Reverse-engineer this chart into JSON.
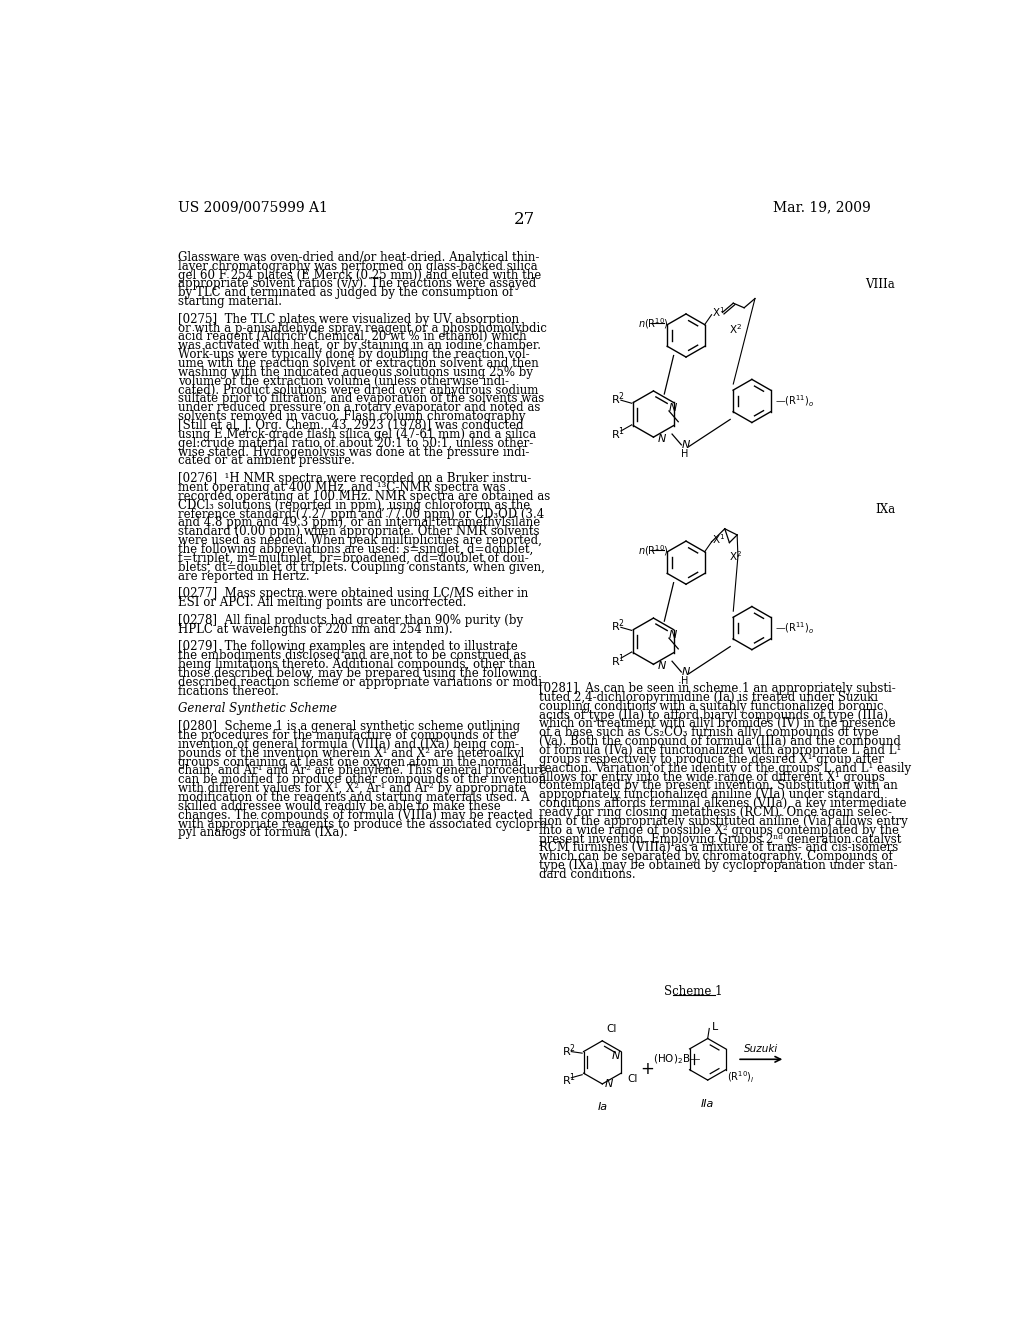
{
  "page_number": "27",
  "header_left": "US 2009/0075999 A1",
  "header_right": "Mar. 19, 2009",
  "background_color": "#ffffff",
  "text_color": "#000000",
  "body_text_left": [
    "Glassware was oven-dried and/or heat-dried. Analytical thin-",
    "layer chromatography was performed on glass-backed silica",
    "gel 60 F 254 plates (E Merck (0.25 mm)) and eluted with the",
    "appropriate solvent ratios (v/v). The reactions were assayed",
    "by TLC and terminated as judged by the consumption of",
    "starting material.",
    "",
    "[0275]  The TLC plates were visualized by UV absorption",
    "or with a p-anisaldehyde spray reagent or a phosphomolybdic",
    "acid reagent (Aldrich Chemical, 20 wt % in ethanol) which",
    "was activated with heat, or by staining in an iodine chamber.",
    "Work-ups were typically done by doubling the reaction vol-",
    "ume with the reaction solvent or extraction solvent and then",
    "washing with the indicated aqueous solutions using 25% by",
    "volume of the extraction volume (unless otherwise indi-",
    "cated). Product solutions were dried over anhydrous sodium",
    "sulfate prior to filtration, and evaporation of the solvents was",
    "under reduced pressure on a rotary evaporator and noted as",
    "solvents removed in vacuo. Flash column chromatography",
    "[Still et al, J. Org. Chem., 43, 2923 (1978)] was conducted",
    "using E Merck-grade flash silica gel (47-61 mm) and a silica",
    "gel:crude material ratio of about 20:1 to 50:1, unless other-",
    "wise stated. Hydrogenolysis was done at the pressure indi-",
    "cated or at ambient pressure.",
    "",
    "[0276]  ¹H NMR spectra were recorded on a Bruker instru-",
    "ment operating at 400 MHz, and ¹³C-NMR spectra was",
    "recorded operating at 100 MHz. NMR spectra are obtained as",
    "CDCl₃ solutions (reported in ppm), using chloroform as the",
    "reference standard (7.27 ppm and 77.00 ppm) or CD₃OD (3.4",
    "and 4.8 ppm and 49.3 ppm), or an internal tetramethylsilane",
    "standard (0.00 ppm) when appropriate. Other NMR solvents",
    "were used as needed. When peak multiplicities are reported,",
    "the following abbreviations are used: s=singlet, d=doublet,",
    "t=triplet, m=multiplet, br=broadened, dd=doublet of dou-",
    "blets, dt=doublet of triplets. Coupling constants, when given,",
    "are reported in Hertz.",
    "",
    "[0277]  Mass spectra were obtained using LC/MS either in",
    "ESI or APCI. All melting points are uncorrected.",
    "",
    "[0278]  All final products had greater than 90% purity (by",
    "HPLC at wavelengths of 220 nm and 254 nm).",
    "",
    "[0279]  The following examples are intended to illustrate",
    "the embodiments disclosed and are not to be construed as",
    "being limitations thereto. Additional compounds, other than",
    "those described below, may be prepared using the following",
    "described reaction scheme or appropriate variations or modi-",
    "fications thereof.",
    "",
    "General Synthetic Scheme",
    "",
    "[0280]  Scheme 1 is a general synthetic scheme outlining",
    "the procedures for the manufacture of compounds of the",
    "invention of general formula (VIIIa) and (IXa) being com-",
    "pounds of the invention wherein X¹ and X² are heteroalkyl",
    "groups containing at least one oxygen atom in the normal",
    "chain, and Ar¹ and Ar² are phenylene. This general procedure",
    "can be modified to produce other compounds of the invention",
    "with different values for X¹, X², Ar¹ and Ar² by appropriate",
    "modification of the reagents and starting materials used. A",
    "skilled addressee would readily be able to make these",
    "changes. The compounds of formula (VIIIa) may be reacted",
    "with appropriate reagents to produce the associated cyclopro-",
    "pyl analogs of formula (IXa)."
  ],
  "right_panel_text": [
    "[0281]  As can be seen in scheme 1 an appropriately substi-",
    "tuted 2,4-dichloropyrimidine (Ia) is treated under Suzuki",
    "coupling conditions with a suitably functionalized boronic",
    "acids of type (IIa) to afford biaryl compounds of type (IIIa),",
    "which on treatment with allyl bromides (IV) in the presence",
    "of a base such as Cs₂CO₃ furnish allyl compounds of type",
    "(Va). Both the compound of formula (IIIa) and the compound",
    "of formula (IVa) are functionalized with appropriate L and L¹",
    "groups respectively to produce the desired X¹ group after",
    "reaction. Variation of the identity of the groups L and L¹ easily",
    "allows for entry into the wide range of different X¹ groups",
    "contemplated by the present invention. Substitution with an",
    "appropriately functionalized aniline (VIa) under standard",
    "conditions affords terminal alkenes (VIIa), a key intermediate",
    "ready for ring closing metathesis (RCM). Once again selec-",
    "tion of the appropriately substituted aniline (Via) allows entry",
    "into a wide range of possible X² groups contemplated by the",
    "present invention. Employing Grubbs 2ⁿᵈ generation catalyst",
    "RCM furnishes (VIIIa) as a mixture of trans- and cis-isomers",
    "which can be separated by chromatography. Compounds of",
    "type (IXa) may be obtained by cyclopropanation under stan-",
    "dard conditions."
  ],
  "label_VIIIa": "VIIIa",
  "label_IXa": "IXa",
  "label_Scheme1": "Scheme 1",
  "body_fontsize": 8.5,
  "header_fontsize": 10,
  "page_num_fontsize": 12
}
